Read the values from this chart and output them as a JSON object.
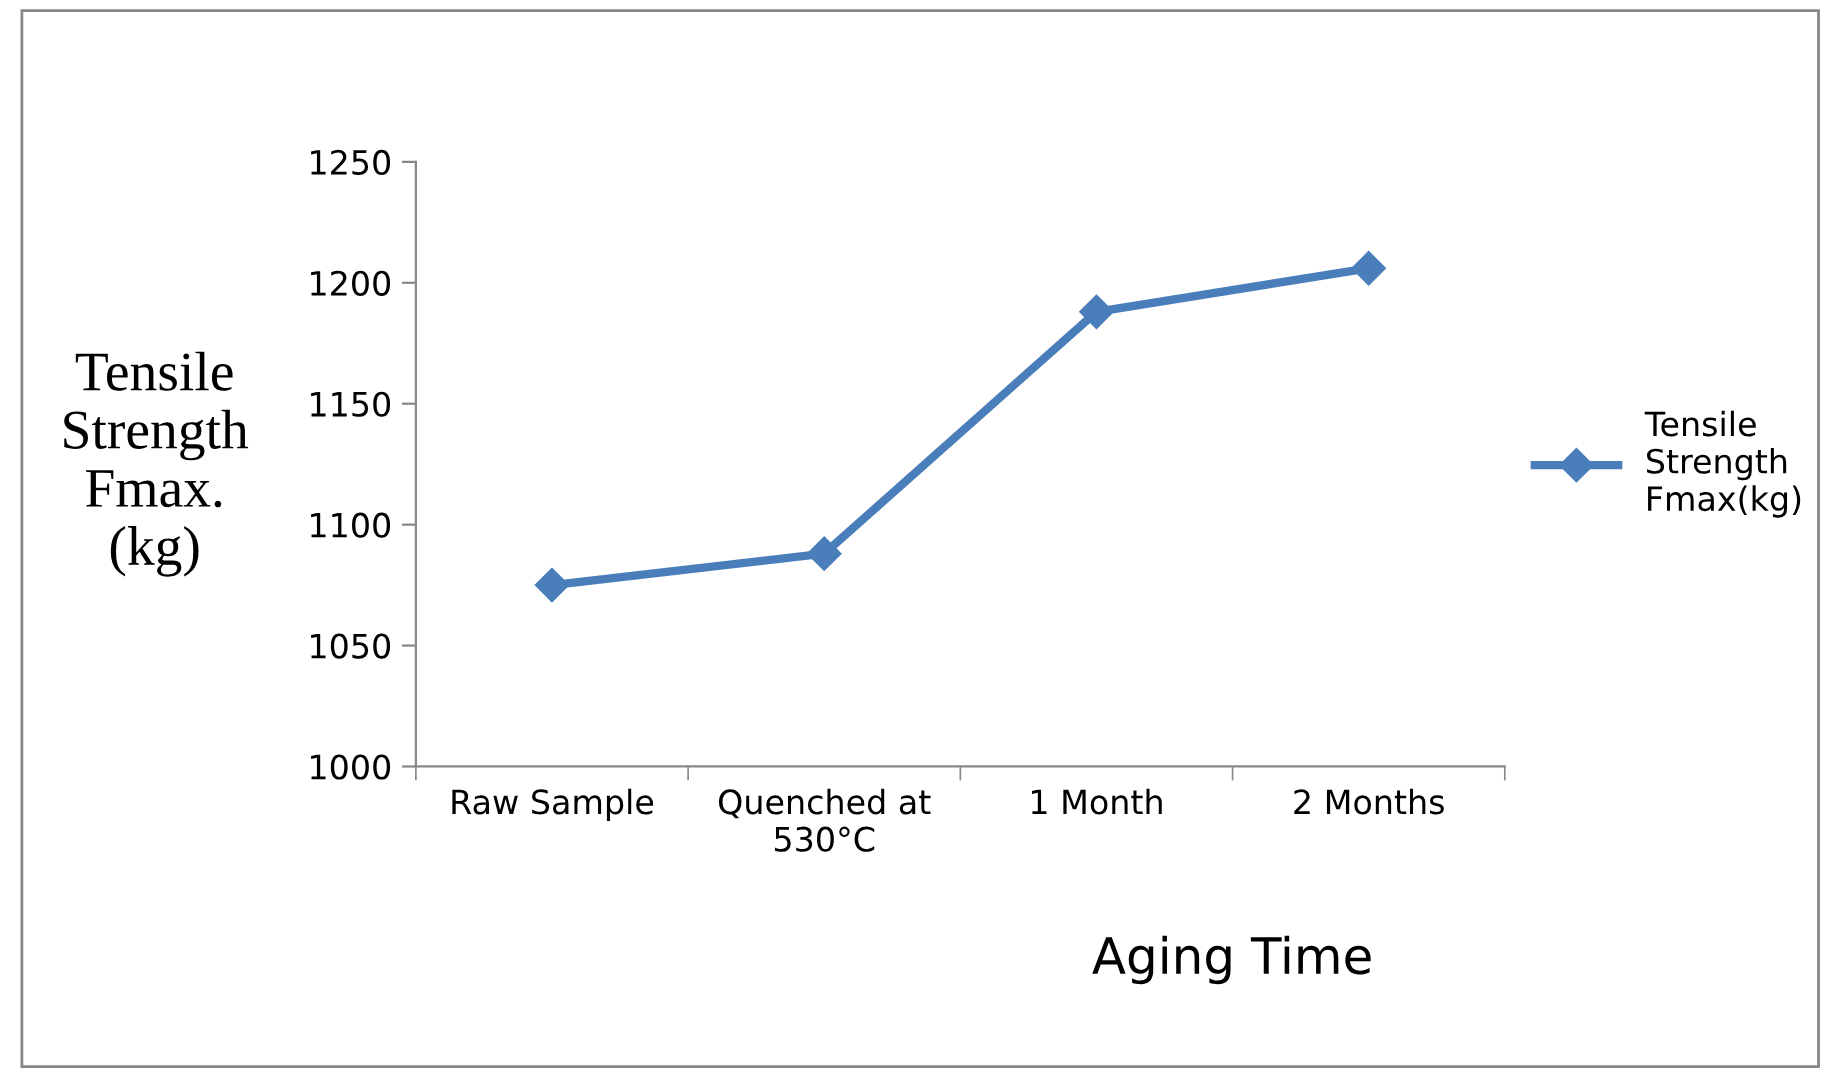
{
  "chart_data": {
    "type": "line",
    "xlabel": "Aging Time",
    "ylabel": "Tensile\nStrength\nFmax.\n(kg)",
    "categories": [
      "Raw Sample",
      "Quenched at\n530°C",
      "1 Month",
      "2 Months"
    ],
    "series": [
      {
        "name": "Tensile\nStrength\nFmax(kg)",
        "color": "#4a7ebb",
        "values": [
          1075,
          1088,
          1188,
          1206
        ]
      }
    ],
    "ylim": [
      1000,
      1250
    ],
    "yticks": [
      1000,
      1050,
      1100,
      1150,
      1200,
      1250
    ],
    "marker": "diamond",
    "line_style": "solid",
    "grid": false,
    "legend": "right"
  }
}
